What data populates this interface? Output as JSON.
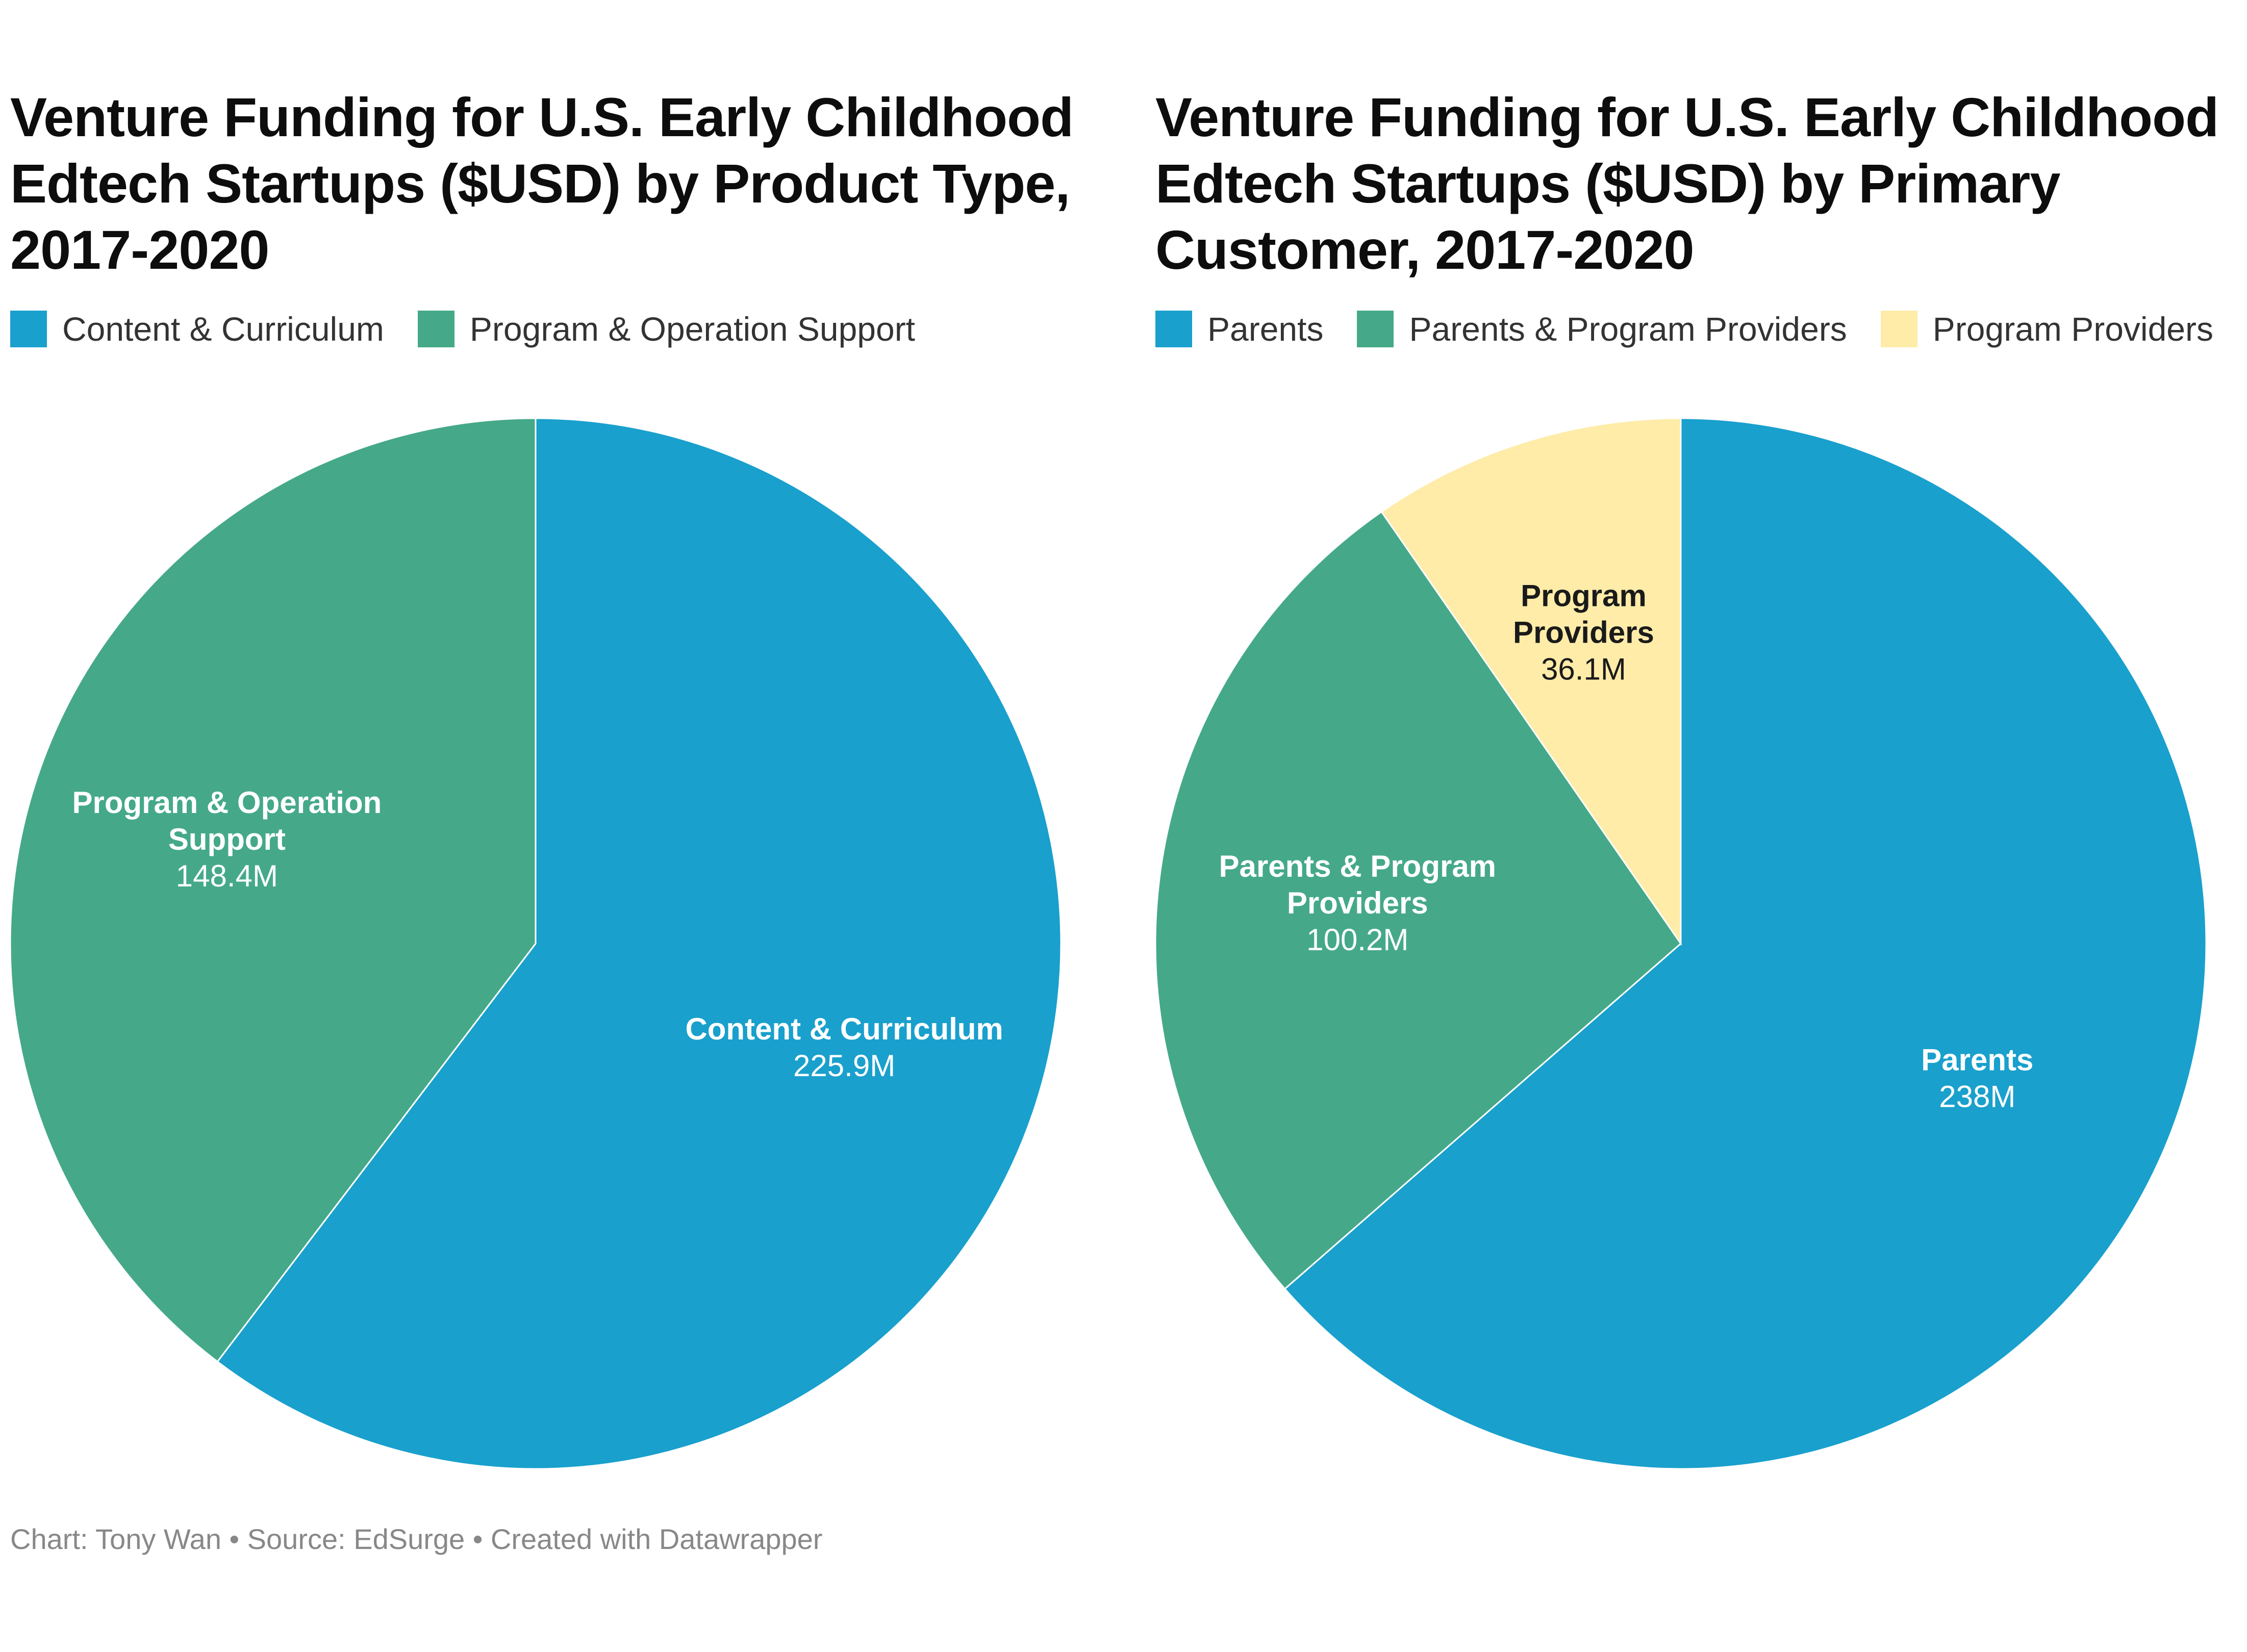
{
  "chart_data": [
    {
      "type": "pie",
      "title": "Venture Funding for U.S. Early Childhood Edtech Startups ($USD) by Product Type, 2017-2020",
      "legend": "top",
      "slices": [
        {
          "name": "Content & Curriculum",
          "label_lines": [
            "Content & Curriculum"
          ],
          "value": 225.9,
          "display_value": "225.9M",
          "color": "#19a0cd",
          "label_color": "#ffffff"
        },
        {
          "name": "Program & Operation Support",
          "label_lines": [
            "Program & Operation",
            "Support"
          ],
          "value": 148.4,
          "display_value": "148.4M",
          "color": "#45a989",
          "label_color": "#ffffff"
        }
      ]
    },
    {
      "type": "pie",
      "title": "Venture Funding for U.S. Early Childhood Edtech Startups ($USD) by Primary Customer, 2017-2020",
      "legend": "top",
      "slices": [
        {
          "name": "Parents",
          "label_lines": [
            "Parents"
          ],
          "value": 238,
          "display_value": "238M",
          "color": "#19a0cd",
          "label_color": "#ffffff"
        },
        {
          "name": "Parents & Program Providers",
          "label_lines": [
            "Parents & Program",
            "Providers"
          ],
          "value": 100.2,
          "display_value": "100.2M",
          "color": "#45a989",
          "label_color": "#ffffff"
        },
        {
          "name": "Program Providers",
          "label_lines": [
            "Program",
            "Providers"
          ],
          "value": 36.1,
          "display_value": "36.1M",
          "color": "#feeca8",
          "label_color": "#1a1a1a"
        }
      ]
    }
  ],
  "footer": {
    "text": "Chart: Tony Wan • Source: EdSurge • Created with Datawrapper"
  }
}
